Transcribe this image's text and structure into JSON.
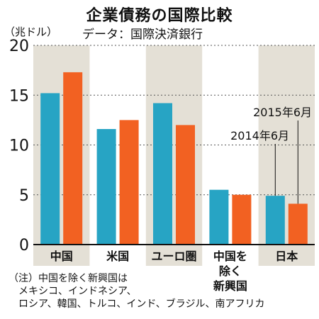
{
  "chart_data": {
    "type": "bar",
    "title": "企業債務の国際比較",
    "subtitle": "データ：国際決済銀行",
    "unit_label": "（兆ドル）",
    "categories": [
      "中国",
      "米国",
      "ユーロ圏",
      "中国を除く新興国",
      "日本"
    ],
    "category_lines": [
      [
        "中国"
      ],
      [
        "米国"
      ],
      [
        "ユーロ圏"
      ],
      [
        "中国を",
        "除く",
        "新興国"
      ],
      [
        "日本"
      ]
    ],
    "series": [
      {
        "name": "2014年6月",
        "color": "#27a4c4",
        "values": [
          15.2,
          11.6,
          14.2,
          5.5,
          4.9
        ]
      },
      {
        "name": "2015年6月",
        "color": "#f26122",
        "values": [
          17.3,
          12.5,
          12.0,
          5.0,
          4.1
        ]
      }
    ],
    "ylim": [
      0,
      20
    ],
    "yticks": [
      0,
      5,
      10,
      15,
      20
    ],
    "grid": true,
    "band_color": "#e4e0d6",
    "note": "（注）中国を除く新興国は\n　メキシコ、インドネシア、\n　ロシア、韓国、トルコ、インド、ブラジル、南アフリカ"
  }
}
